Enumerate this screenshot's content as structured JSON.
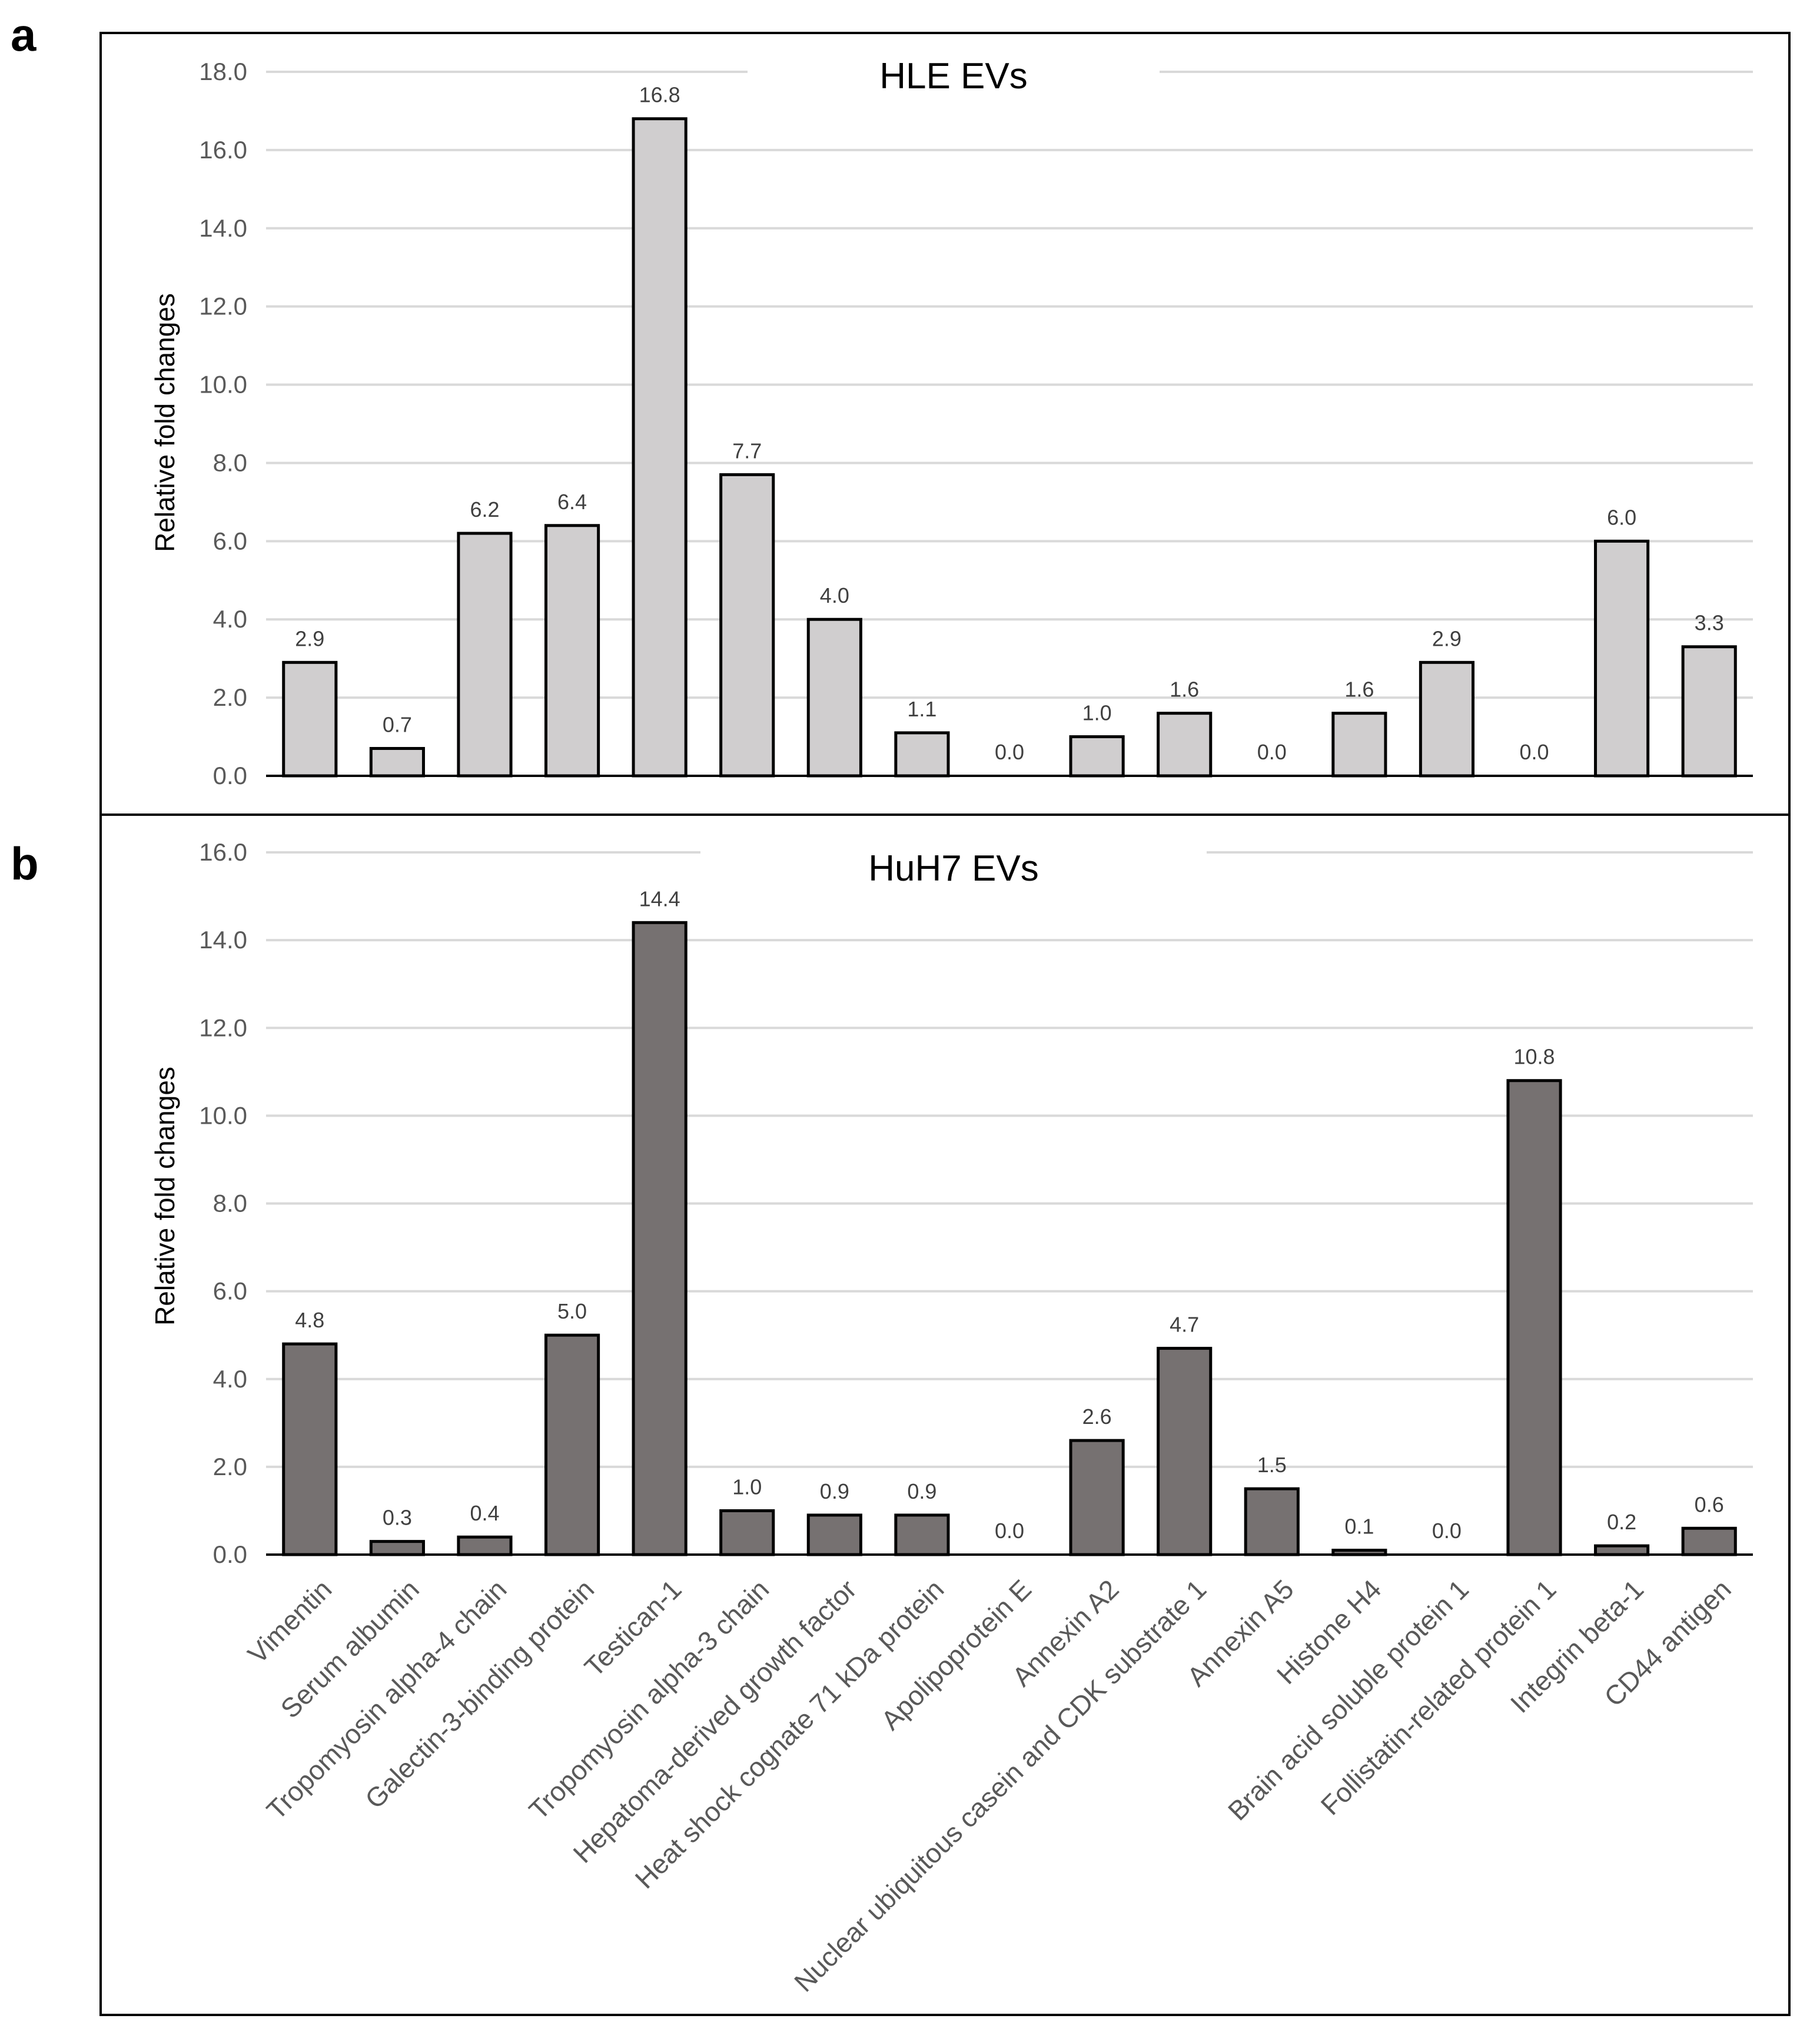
{
  "figure": {
    "panel_labels": [
      "a",
      "b"
    ]
  },
  "chart_data": [
    {
      "type": "bar",
      "panel": "a",
      "title": "HLE EVs",
      "xlabel": "",
      "ylabel": "Relative fold changes",
      "ylim": [
        0,
        18
      ],
      "yticks": [
        "0.0",
        "2.0",
        "4.0",
        "6.0",
        "8.0",
        "10.0",
        "12.0",
        "14.0",
        "16.0",
        "18.0"
      ],
      "grid": true,
      "bar_color": "#d0cecf",
      "categories": [
        "Vimentin",
        "Serum albumin",
        "Tropomyosin alpha-4 chain",
        "Galectin-3-binding protein",
        "Testican-1",
        "Tropomyosin alpha-3 chain",
        "Hepatoma-derived growth factor",
        "Heat shock cognate 71 kDa protein",
        "Apolipoprotein E",
        "Annexin A2",
        "Nuclear ubiquitous casein and CDK substrate 1",
        "Annexin A5",
        "Histone H4",
        "Brain acid soluble protein 1",
        "Follistatin-related protein 1",
        "Integrin beta-1",
        "CD44 antigen"
      ],
      "values": [
        2.9,
        0.7,
        6.2,
        6.4,
        16.8,
        7.7,
        4.0,
        1.1,
        0.0,
        1.0,
        1.6,
        0.0,
        1.6,
        2.9,
        0.0,
        6.0,
        3.3
      ],
      "data_labels": [
        "2.9",
        "0.7",
        "6.2",
        "6.4",
        "16.8",
        "7.7",
        "4.0",
        "1.1",
        "0.0",
        "1.0",
        "1.6",
        "0.0",
        "1.6",
        "2.9",
        "0.0",
        "6.0",
        "3.3"
      ]
    },
    {
      "type": "bar",
      "panel": "b",
      "title": "HuH7 EVs",
      "xlabel": "",
      "ylabel": "Relative fold changes",
      "ylim": [
        0,
        16
      ],
      "yticks": [
        "0.0",
        "2.0",
        "4.0",
        "6.0",
        "8.0",
        "10.0",
        "12.0",
        "14.0",
        "16.0"
      ],
      "grid": true,
      "bar_color": "#767171",
      "categories": [
        "Vimentin",
        "Serum albumin",
        "Tropomyosin alpha-4 chain",
        "Galectin-3-binding protein",
        "Testican-1",
        "Tropomyosin alpha-3 chain",
        "Hepatoma-derived growth factor",
        "Heat shock cognate 71 kDa protein",
        "Apolipoprotein E",
        "Annexin A2",
        "Nuclear ubiquitous casein and CDK substrate 1",
        "Annexin A5",
        "Histone H4",
        "Brain acid soluble protein 1",
        "Follistatin-related protein 1",
        "Integrin beta-1",
        "CD44 antigen"
      ],
      "values": [
        4.8,
        0.3,
        0.4,
        5.0,
        14.4,
        1.0,
        0.9,
        0.9,
        0.0,
        2.6,
        4.7,
        1.5,
        0.1,
        0.0,
        10.8,
        0.2,
        0.6
      ],
      "data_labels": [
        "4.8",
        "0.3",
        "0.4",
        "5.0",
        "14.4",
        "1.0",
        "0.9",
        "0.9",
        "0.0",
        "2.6",
        "4.7",
        "1.5",
        "0.1",
        "0.0",
        "10.8",
        "0.2",
        "0.6"
      ]
    }
  ]
}
